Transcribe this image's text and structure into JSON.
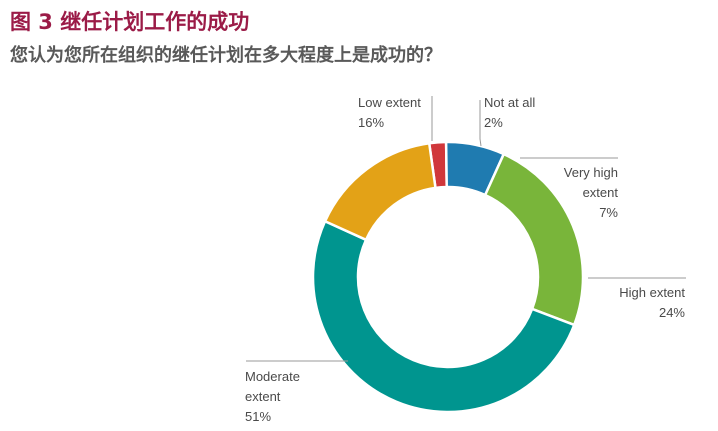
{
  "title": "图 3  继任计划工作的成功",
  "subtitle": "您认为您所在组织的继任计划在多大程度上是成功的？",
  "chart_data": {
    "type": "pie",
    "donut": true,
    "slices": [
      {
        "label_lines": [
          "Not at all"
        ],
        "value": 2,
        "value_label": "2%",
        "color": "#d0373b"
      },
      {
        "label_lines": [
          "Very high",
          "extent"
        ],
        "value": 7,
        "value_label": "7%",
        "color": "#1f7bb0"
      },
      {
        "label_lines": [
          "High extent"
        ],
        "value": 24,
        "value_label": "24%",
        "color": "#79b53a"
      },
      {
        "label_lines": [
          "Moderate",
          "extent"
        ],
        "value": 51,
        "value_label": "51%",
        "color": "#00958f"
      },
      {
        "label_lines": [
          "Low extent"
        ],
        "value": 16,
        "value_label": "16%",
        "color": "#e3a217"
      }
    ]
  }
}
